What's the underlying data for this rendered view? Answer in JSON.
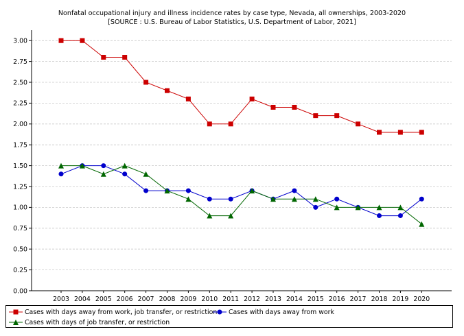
{
  "title_lines": [
    "Nonfatal occupational injury and illness incidence rates by case type, Nevada, all ownerships, 2003-2020",
    "[SOURCE : U.S. Bureau of Labor Statistics, U.S. Department of Labor, 2021]"
  ],
  "chart_data": {
    "type": "line",
    "title": "Nonfatal occupational injury and illness incidence rates by case type, Nevada, all ownerships, 2003-2020",
    "subtitle": "[SOURCE : U.S. Bureau of Labor Statistics, U.S. Department of Labor, 2021]",
    "categories": [
      "2003",
      "2004",
      "2005",
      "2006",
      "2007",
      "2008",
      "2009",
      "2010",
      "2011",
      "2012",
      "2013",
      "2014",
      "2015",
      "2016",
      "2017",
      "2018",
      "2019",
      "2020"
    ],
    "ylim": [
      0,
      3.125
    ],
    "yticks": [
      "0.00",
      "0.25",
      "0.50",
      "0.75",
      "1.00",
      "1.25",
      "1.50",
      "1.75",
      "2.00",
      "2.25",
      "2.50",
      "2.75",
      "3.00"
    ],
    "grid": "horizontal dashed",
    "legend_position": "bottom",
    "series": [
      {
        "name": "Cases with days away from work, job transfer, or restriction",
        "color": "#cc0000",
        "marker": "square",
        "values": [
          3.0,
          3.0,
          2.8,
          2.8,
          2.5,
          2.4,
          2.3,
          2.0,
          2.0,
          2.3,
          2.2,
          2.2,
          2.1,
          2.1,
          2.0,
          1.9,
          1.9,
          1.9
        ]
      },
      {
        "name": "Cases with days away from work",
        "color": "#0000cc",
        "marker": "circle",
        "values": [
          1.4,
          1.5,
          1.5,
          1.4,
          1.2,
          1.2,
          1.2,
          1.1,
          1.1,
          1.2,
          1.1,
          1.2,
          1.0,
          1.1,
          1.0,
          0.9,
          0.9,
          1.1
        ]
      },
      {
        "name": "Cases with days of job transfer, or restriction",
        "color": "#006600",
        "marker": "triangle",
        "values": [
          1.5,
          1.5,
          1.4,
          1.5,
          1.4,
          1.2,
          1.1,
          0.9,
          0.9,
          1.2,
          1.1,
          1.1,
          1.1,
          1.0,
          1.0,
          1.0,
          1.0,
          0.8
        ]
      }
    ]
  }
}
